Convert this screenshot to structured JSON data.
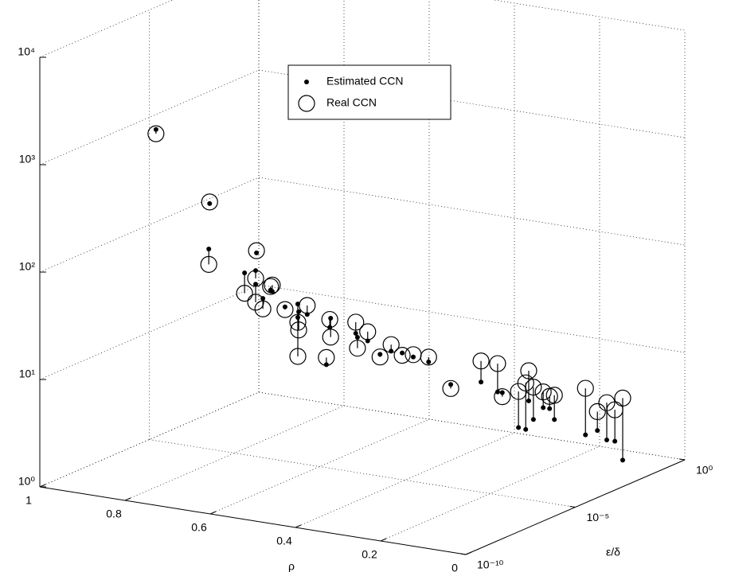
{
  "chart_data": {
    "type": "scatter3d",
    "x_label": "ρ",
    "y_label": "ε/δ",
    "x": [
      0.933,
      0.807,
      0.809,
      0.697,
      0.725,
      0.699,
      0.699,
      0.664,
      0.66,
      0.682,
      0.63,
      0.6,
      0.598,
      0.6,
      0.578,
      0.533,
      0.525,
      0.523,
      0.464,
      0.46,
      0.436,
      0.407,
      0.381,
      0.355,
      0.329,
      0.293,
      0.241,
      0.17,
      0.131,
      0.12,
      0.082,
      0.065,
      0.058,
      0.047,
      0.024,
      0.009,
      0.152,
      0.079,
      0.051,
      0.029,
      0.01,
      0.043
    ],
    "y": [
      1e-06,
      1e-06,
      1e-06,
      1e-06,
      1e-06,
      1e-06,
      1e-06,
      1e-06,
      1e-06,
      1e-06,
      1e-06,
      1e-06,
      1e-06,
      1e-06,
      1e-06,
      1e-06,
      1e-06,
      1e-06,
      1e-06,
      1e-06,
      1e-06,
      1e-06,
      1e-06,
      1e-06,
      1e-06,
      1e-06,
      1e-06,
      1e-06,
      1e-06,
      1e-06,
      1e-06,
      1e-06,
      1e-06,
      1e-06,
      1e-06,
      1e-06,
      0.001,
      0.001,
      0.001,
      0.001,
      0.001,
      0.01
    ],
    "series": [
      {
        "name": "Estimated CCN",
        "marker": "dot",
        "color": "#000000",
        "values": [
          1040,
          255,
          96,
          104,
          65,
          71,
          53,
          49,
          48,
          40,
          36,
          40,
          34,
          30,
          33,
          12,
          27,
          33,
          26,
          24,
          23,
          18,
          20,
          20,
          19,
          18,
          12,
          14,
          12,
          12,
          6,
          5.9,
          11,
          7.5,
          10,
          10,
          3.5,
          2.8,
          3.2,
          2.7,
          2.7,
          1.4
        ]
      },
      {
        "name": "Real CCN",
        "marker": "circle",
        "color": "#000000",
        "values": [
          950,
          264,
          69,
          109,
          42,
          60,
          36,
          53,
          55,
          32,
          34,
          27,
          23,
          13,
          40,
          14,
          32,
          22,
          33,
          19,
          28,
          17,
          23,
          19,
          20,
          20,
          11,
          22,
          22,
          11,
          13,
          16,
          21,
          15,
          14,
          13,
          5.9,
          7.6,
          4.8,
          6,
          5.3,
          5.3
        ]
      }
    ],
    "xlim": [
      0,
      1
    ],
    "xticks": [
      1,
      0.8,
      0.6,
      0.4,
      0.2,
      0
    ],
    "ylim": [
      1e-10,
      1
    ],
    "y_scale": "log",
    "yticks": [
      {
        "value": 1e-10,
        "label": "10⁻¹⁰"
      },
      {
        "value": 1e-05,
        "label": "10⁻⁵"
      },
      {
        "value": 1,
        "label": "10⁰"
      }
    ],
    "zlim": [
      1,
      10000
    ],
    "z_scale": "log",
    "zticks": [
      {
        "value": 1,
        "label": "10⁰"
      },
      {
        "value": 10,
        "label": "10¹"
      },
      {
        "value": 100,
        "label": "10²"
      },
      {
        "value": 1000,
        "label": "10³"
      },
      {
        "value": 10000,
        "label": "10⁴"
      }
    ],
    "grid": true,
    "legend": "top"
  }
}
